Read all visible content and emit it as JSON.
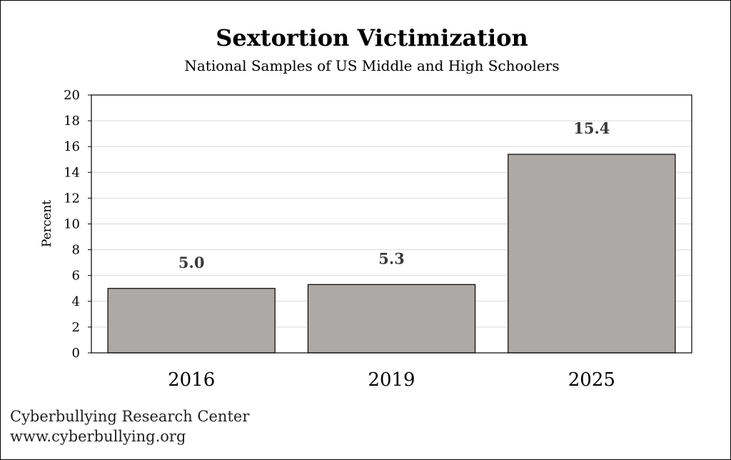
{
  "chart_data": {
    "type": "bar",
    "title": "Sextortion Victimization",
    "subtitle": "National Samples of US Middle and High Schoolers",
    "categories": [
      "2016",
      "2019",
      "2025"
    ],
    "values": [
      5.0,
      5.3,
      15.4
    ],
    "data_labels": [
      "5.0",
      "5.3",
      "15.4"
    ],
    "xlabel": "",
    "ylabel": "Percent",
    "ylim": [
      0,
      20
    ],
    "yticks": [
      0,
      2,
      4,
      6,
      8,
      10,
      12,
      14,
      16,
      18,
      20
    ],
    "grid": true,
    "legend": "none",
    "colors": {
      "bar_fill": "#ada9a7",
      "bar_stroke": "#000000",
      "grid": "#d9d9d9",
      "data_label": "#3a3a3a"
    }
  },
  "footer": {
    "line1": "Cyberbullying Research Center",
    "line2": "www.cyberbullying.org"
  }
}
